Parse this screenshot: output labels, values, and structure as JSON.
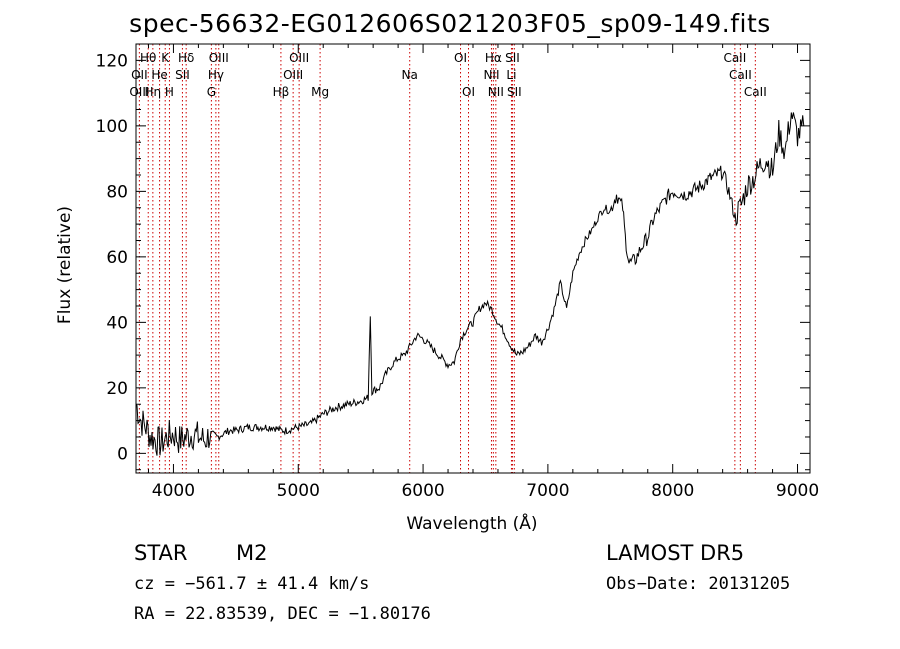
{
  "title": "spec-56632-EG012606S021203F05_sp09-149.fits",
  "footer": {
    "object_type": "STAR",
    "subclass": "M2",
    "survey": "LAMOST DR5",
    "cz": "cz = −561.7 ± 41.4 km/s",
    "obs_date": "Obs−Date: 20131205",
    "coords": "RA =  22.83539, DEC =  −1.80176"
  },
  "chart_data": {
    "type": "line",
    "title": "spec-56632-EG012606S021203F05_sp09-149.fits",
    "xlabel": "Wavelength (Å)",
    "ylabel": "Flux (relative)",
    "xlim": [
      3700,
      9100
    ],
    "ylim": [
      -6,
      125
    ],
    "x_ticks": [
      4000,
      5000,
      6000,
      7000,
      8000,
      9000
    ],
    "x_tick_labels": [
      "4000",
      "5000",
      "6000",
      "7000",
      "8000",
      "9000"
    ],
    "y_ticks": [
      0,
      20,
      40,
      60,
      80,
      100,
      120
    ],
    "y_tick_labels": [
      "0",
      "20",
      "40",
      "60",
      "80",
      "100",
      "120"
    ],
    "grid": false,
    "line_color": "#000000",
    "marker_color": "#cc0000",
    "spectral_lines": [
      {
        "name": "Hθ",
        "wavelength": 3798,
        "row": 0
      },
      {
        "name": "K",
        "wavelength": 3934,
        "row": 0
      },
      {
        "name": "Hδ",
        "wavelength": 4102,
        "row": 0
      },
      {
        "name": "OIII",
        "wavelength": 4363,
        "row": 0
      },
      {
        "name": "OIII",
        "wavelength": 5007,
        "row": 0
      },
      {
        "name": "OI",
        "wavelength": 6300,
        "row": 0
      },
      {
        "name": "Hα",
        "wavelength": 6563,
        "row": 0
      },
      {
        "name": "SII",
        "wavelength": 6716,
        "row": 0
      },
      {
        "name": "CaII",
        "wavelength": 8498,
        "row": 0
      },
      {
        "name": "OII",
        "wavelength": 3727,
        "row": 1
      },
      {
        "name": "He",
        "wavelength": 3889,
        "row": 1
      },
      {
        "name": "SII",
        "wavelength": 4072,
        "row": 1
      },
      {
        "name": "Hγ",
        "wavelength": 4340,
        "row": 1
      },
      {
        "name": "OIII",
        "wavelength": 4959,
        "row": 1
      },
      {
        "name": "Na",
        "wavelength": 5893,
        "row": 1
      },
      {
        "name": "NII",
        "wavelength": 6548,
        "row": 1
      },
      {
        "name": "Li",
        "wavelength": 6708,
        "row": 1
      },
      {
        "name": "CaII",
        "wavelength": 8542,
        "row": 1
      },
      {
        "name": "OIII",
        "wavelength": 3727,
        "row": 2
      },
      {
        "name": "Hη",
        "wavelength": 3835,
        "row": 2
      },
      {
        "name": "H",
        "wavelength": 3968,
        "row": 2
      },
      {
        "name": "G",
        "wavelength": 4304,
        "row": 2
      },
      {
        "name": "Hβ",
        "wavelength": 4861,
        "row": 2
      },
      {
        "name": "Mg",
        "wavelength": 5175,
        "row": 2
      },
      {
        "name": "OI",
        "wavelength": 6364,
        "row": 2
      },
      {
        "name": "NII",
        "wavelength": 6583,
        "row": 2
      },
      {
        "name": "SII",
        "wavelength": 6731,
        "row": 2
      },
      {
        "name": "CaII",
        "wavelength": 8662,
        "row": 2
      }
    ],
    "series": [
      {
        "x": [
          3700,
          3740,
          3780,
          3820,
          3860,
          3900,
          3950,
          4000,
          4050,
          4100,
          4150,
          4200,
          4250,
          4300,
          4350,
          4400,
          4450,
          4500,
          4600,
          4700,
          4800,
          4860,
          4900,
          5000,
          5100,
          5200,
          5300,
          5400,
          5500,
          5560,
          5577,
          5590,
          5650,
          5700,
          5750,
          5800,
          5850,
          5900,
          5950,
          6000,
          6050,
          6100,
          6150,
          6200,
          6250,
          6300,
          6350,
          6400,
          6450,
          6500,
          6550,
          6600,
          6650,
          6700,
          6750,
          6800,
          6850,
          6900,
          6950,
          7000,
          7050,
          7100,
          7150,
          7200,
          7250,
          7300,
          7350,
          7400,
          7450,
          7500,
          7550,
          7600,
          7620,
          7650,
          7700,
          7750,
          7800,
          7850,
          7900,
          7950,
          8000,
          8100,
          8200,
          8300,
          8400,
          8450,
          8500,
          8550,
          8600,
          8650,
          8700,
          8750,
          8800,
          8850,
          8900,
          8950,
          9000,
          9050
        ],
        "y": [
          15,
          10,
          8,
          5,
          4,
          3,
          5,
          6,
          4,
          5,
          6,
          5,
          4,
          6,
          5,
          6,
          7,
          7,
          8,
          8,
          8,
          7,
          7,
          8,
          9,
          12,
          14,
          15,
          16,
          17,
          42,
          19,
          20,
          24,
          27,
          29,
          30,
          33,
          36,
          35,
          33,
          31,
          29,
          27,
          28,
          35,
          38,
          40,
          44,
          46,
          44,
          40,
          37,
          33,
          30,
          31,
          33,
          36,
          34,
          38,
          44,
          52,
          44,
          55,
          61,
          65,
          68,
          72,
          75,
          74,
          79,
          75,
          66,
          58,
          59,
          63,
          66,
          72,
          75,
          78,
          80,
          79,
          81,
          84,
          86,
          80,
          72,
          76,
          82,
          84,
          88,
          90,
          86,
          98,
          92,
          104,
          97,
          100
        ]
      }
    ]
  }
}
